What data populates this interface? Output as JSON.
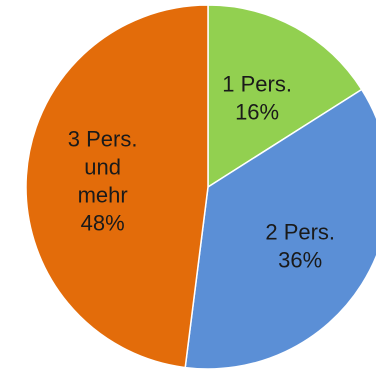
{
  "chart_data": {
    "type": "pie",
    "title": "",
    "slices": [
      {
        "label_lines": [
          "1 Pers."
        ],
        "value_label": "16%",
        "value": 16,
        "color": "#92d050"
      },
      {
        "label_lines": [
          "2 Pers."
        ],
        "value_label": "36%",
        "value": 36,
        "color": "#5b8fd6"
      },
      {
        "label_lines": [
          "3 Pers.",
          "und",
          "mehr"
        ],
        "value_label": "48%",
        "value": 48,
        "color": "#e36c0a"
      }
    ],
    "start_angle_deg": 0,
    "direction": "clockwise"
  }
}
